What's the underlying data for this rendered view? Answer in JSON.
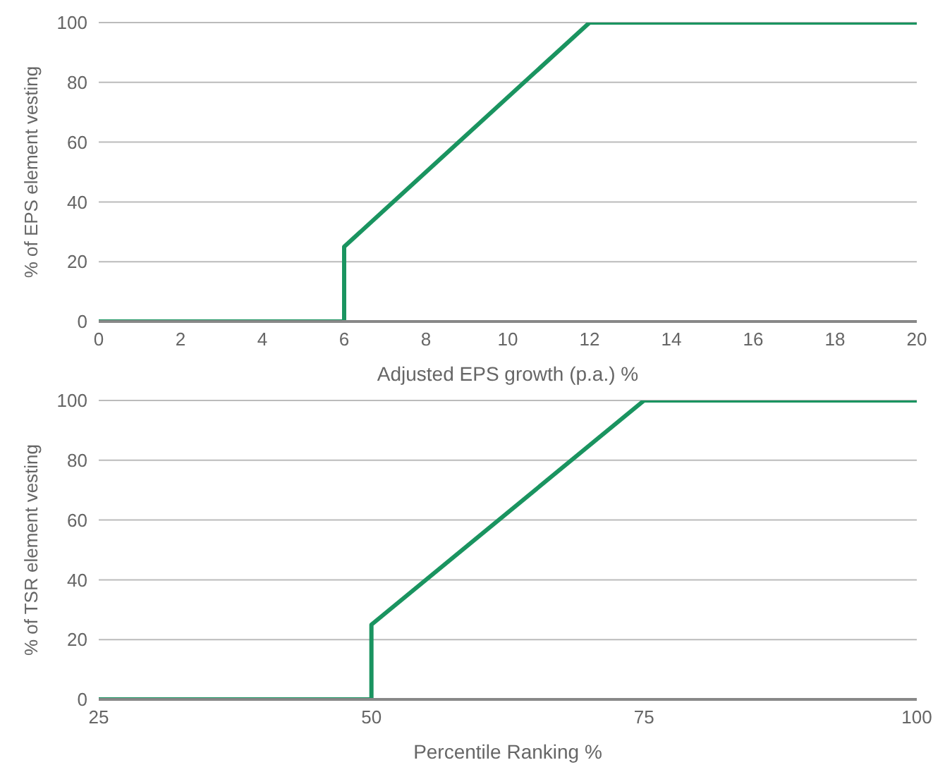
{
  "chart_data": [
    {
      "type": "line",
      "xlabel": "Adjusted EPS growth (p.a.) %",
      "ylabel": "% of EPS element vesting",
      "xlim": [
        0,
        20
      ],
      "xticks": [
        0,
        2,
        4,
        6,
        8,
        10,
        12,
        14,
        16,
        18,
        20
      ],
      "ylim": [
        0,
        100
      ],
      "yticks": [
        0,
        20,
        40,
        60,
        80,
        100
      ],
      "grid": "y",
      "series": [
        {
          "color": "#1a9460",
          "x": [
            0,
            6,
            6,
            12,
            20
          ],
          "values": [
            0,
            0,
            25,
            100,
            100
          ]
        }
      ]
    },
    {
      "type": "line",
      "xlabel": "Percentile Ranking %",
      "ylabel": "% of TSR element vesting",
      "xlim": [
        25,
        100
      ],
      "xticks": [
        25,
        50,
        75,
        100
      ],
      "ylim": [
        0,
        100
      ],
      "yticks": [
        0,
        20,
        40,
        60,
        80,
        100
      ],
      "grid": "y",
      "series": [
        {
          "color": "#1a9460",
          "x": [
            25,
            50,
            50,
            75,
            100
          ],
          "values": [
            0,
            0,
            25,
            100,
            100
          ]
        }
      ]
    }
  ]
}
